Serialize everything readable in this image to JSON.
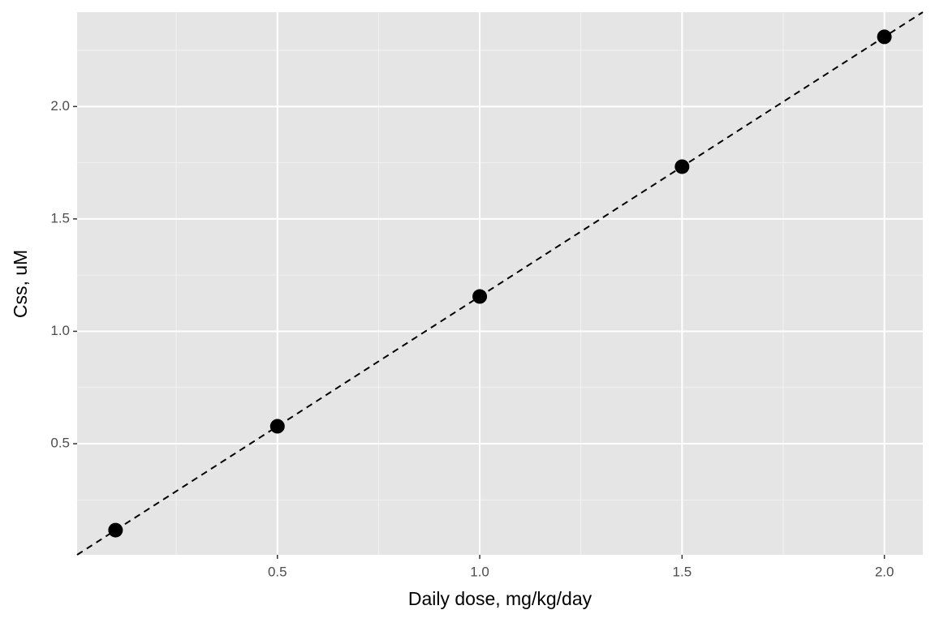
{
  "chart_data": {
    "type": "scatter",
    "x_label": "Daily dose, mg/kg/day",
    "y_label": "Css, uM",
    "series": [
      {
        "x": [
          0.1,
          0.5,
          1.0,
          1.5,
          2.0
        ],
        "values": [
          0.1155,
          0.5775,
          1.155,
          1.7325,
          2.31
        ],
        "color": "#000000"
      }
    ],
    "reference_line": {
      "slope": 1.155,
      "intercept": 0,
      "color": "#000000",
      "dashed": true
    },
    "xlim": [
      0.005,
      2.095
    ],
    "ylim": [
      0.0058,
      2.4197
    ],
    "xticks": [
      0.5,
      {
        "value": 1,
        "label": "1.0"
      },
      1.5,
      {
        "value": 2,
        "label": "2.0"
      }
    ],
    "yticks": [
      0.5,
      {
        "value": 1,
        "label": "1.0"
      },
      1.5,
      {
        "value": 2,
        "label": "2.0"
      }
    ],
    "minor_xticks": [
      0.25,
      0.75,
      1.25,
      1.75
    ],
    "minor_yticks": [
      0.25,
      0.75,
      1.25,
      1.75,
      2.25
    ],
    "grid": true
  }
}
